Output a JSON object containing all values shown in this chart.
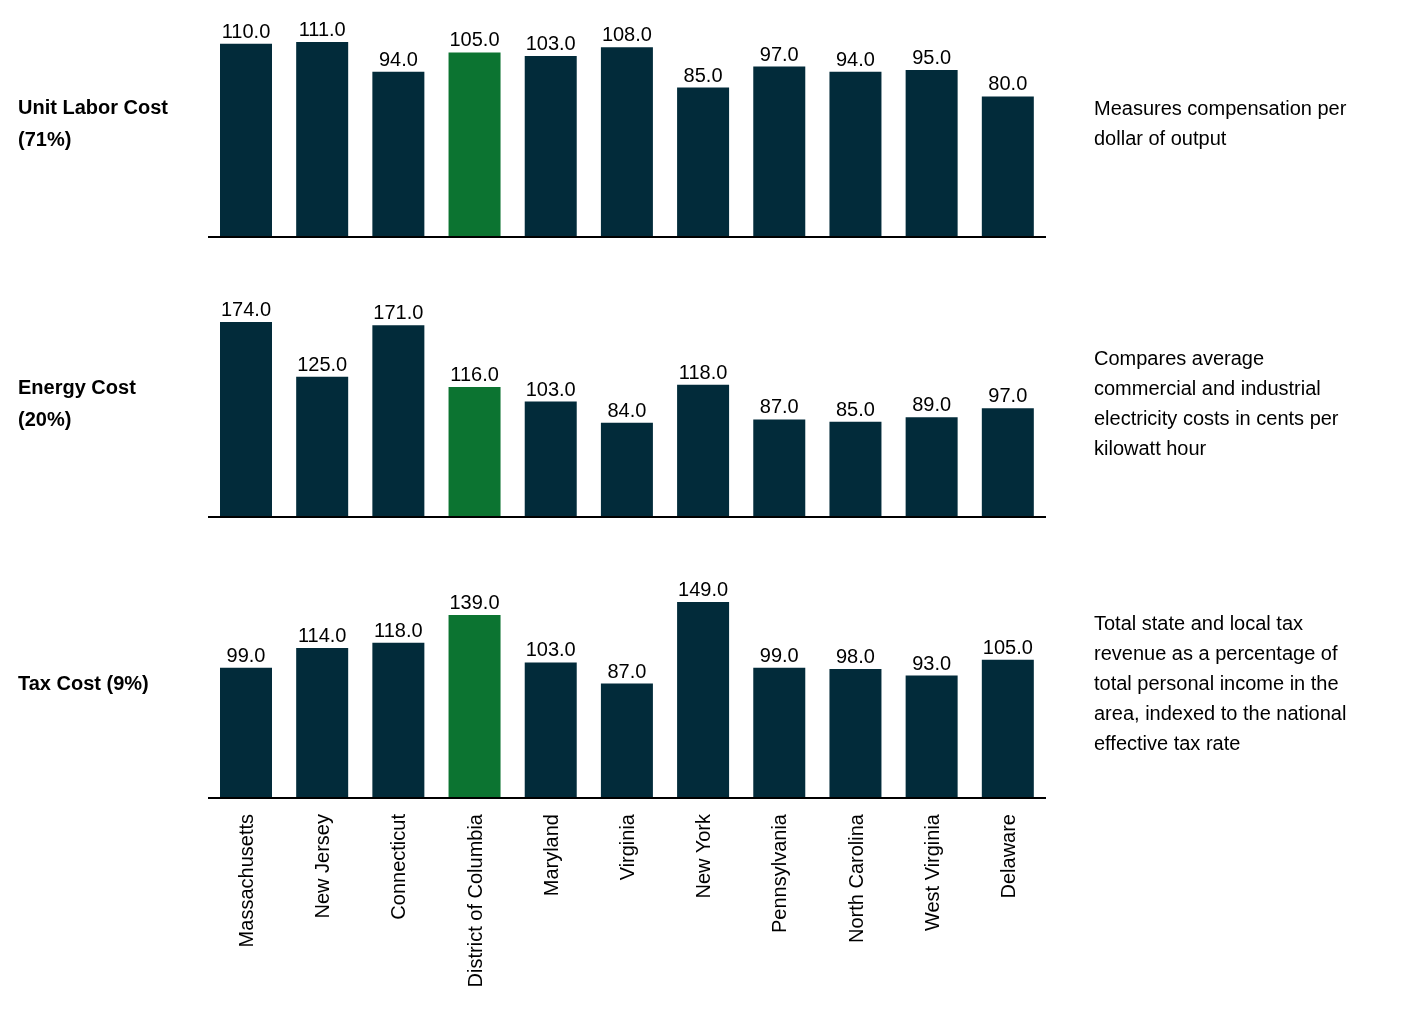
{
  "chart_data": [
    {
      "type": "bar",
      "ylabel": "Unit Labor Cost (71%)",
      "categories": [
        null,
        null,
        null,
        null,
        null,
        null,
        null,
        null,
        null,
        null,
        null
      ],
      "values": [
        110,
        111,
        94,
        105,
        103,
        108,
        85,
        97,
        94,
        95,
        80
      ],
      "value_labels": [
        "110.0",
        "111.0",
        "94.0",
        "105.0",
        "103.0",
        "108.0",
        "85.0",
        "97.0",
        "94.0",
        "95.0",
        "80.0"
      ],
      "colors": [
        "#022b3a",
        "#022b3a",
        "#022b3a",
        "#0c7431",
        "#022b3a",
        "#022b3a",
        "#022b3a",
        "#022b3a",
        "#022b3a",
        "#022b3a",
        "#022b3a"
      ],
      "annotations": [
        "Measures compensation per dollar of output"
      ],
      "tick_labels": false
    },
    {
      "type": "bar",
      "ylabel": "Energy Cost (20%)",
      "categories": [
        null,
        null,
        null,
        null,
        null,
        null,
        null,
        null,
        null,
        null,
        null
      ],
      "values": [
        174,
        125,
        171,
        116,
        103,
        84,
        118,
        87,
        85,
        89,
        97
      ],
      "value_labels": [
        "174.0",
        "125.0",
        "171.0",
        "116.0",
        "103.0",
        "84.0",
        "118.0",
        "87.0",
        "85.0",
        "89.0",
        "97.0"
      ],
      "colors": [
        "#022b3a",
        "#022b3a",
        "#022b3a",
        "#0c7431",
        "#022b3a",
        "#022b3a",
        "#022b3a",
        "#022b3a",
        "#022b3a",
        "#022b3a",
        "#022b3a"
      ],
      "annotations": [
        "Compares average commercial and industrial electricity costs in cents per kilowatt hour"
      ],
      "tick_labels": false
    },
    {
      "type": "bar",
      "ylabel": "Tax Cost (9%)",
      "categories": [
        "Massachusetts",
        "New Jersey",
        "Connecticut",
        "District of Columbia",
        "Maryland",
        "Virginia",
        "New York",
        "Pennsylvania",
        "North Carolina",
        "West Virginia",
        "Delaware"
      ],
      "values": [
        99,
        114,
        118,
        139,
        103,
        87,
        149,
        99,
        98,
        93,
        105
      ],
      "value_labels": [
        "99.0",
        "114.0",
        "118.0",
        "139.0",
        "103.0",
        "87.0",
        "149.0",
        "99.0",
        "98.0",
        "93.0",
        "105.0"
      ],
      "colors": [
        "#022b3a",
        "#022b3a",
        "#022b3a",
        "#0c7431",
        "#022b3a",
        "#022b3a",
        "#022b3a",
        "#022b3a",
        "#022b3a",
        "#022b3a",
        "#022b3a"
      ],
      "annotations": [
        "Total state and local tax revenue as a percentage of total personal income in the area, indexed to the national effective tax rate"
      ],
      "tick_labels": "x"
    }
  ]
}
